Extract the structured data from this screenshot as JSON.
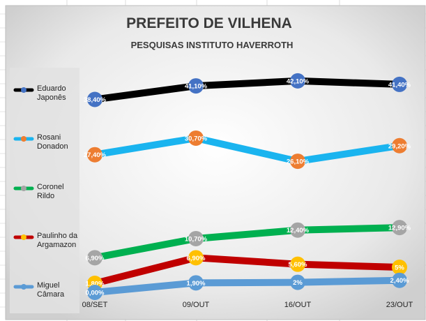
{
  "chart_data": {
    "type": "line",
    "title": "PREFEITO DE VILHENA",
    "subtitle": "PESQUISAS INSTITUTO HAVERROTH",
    "categories": [
      "08/SET",
      "09/OUT",
      "16/OUT",
      "23/OUT"
    ],
    "ylim": [
      0,
      45
    ],
    "grid": false,
    "legend_position": "left",
    "series": [
      {
        "name": "Eduardo Japonês",
        "legend_lines": [
          "Eduardo",
          "Japonês"
        ],
        "values": [
          38.4,
          41.1,
          42.1,
          41.4
        ],
        "labels": [
          "38,40%",
          "41,10%",
          "42,10%",
          "41,40%"
        ],
        "line_color": "#000000",
        "marker_color": "#4472c4"
      },
      {
        "name": "Rosani Donadon",
        "legend_lines": [
          "Rosani",
          "Donadon"
        ],
        "values": [
          27.4,
          30.7,
          26.1,
          29.2
        ],
        "labels": [
          "27,40%",
          "30,70%",
          "26,10%",
          "29,20%"
        ],
        "line_color": "#1ab4ef",
        "marker_color": "#ed7d31"
      },
      {
        "name": "Coronel Rildo",
        "legend_lines": [
          "Coronel",
          "Rildo"
        ],
        "values": [
          6.9,
          10.7,
          12.4,
          12.9
        ],
        "labels": [
          "6,90%",
          "10,70%",
          "12,40%",
          "12,90%"
        ],
        "line_color": "#00b050",
        "marker_color": "#a5a5a5"
      },
      {
        "name": "Paulinho da Argamazon",
        "legend_lines": [
          "Paulinho da",
          "Argamazon"
        ],
        "values": [
          1.8,
          6.9,
          5.6,
          5.0
        ],
        "labels": [
          "1,80%",
          "6,90%",
          "5,60%",
          "5%"
        ],
        "line_color": "#c00000",
        "marker_color": "#ffc000"
      },
      {
        "name": "Miguel Câmara",
        "legend_lines": [
          "Miguel",
          "Câmara"
        ],
        "values": [
          0.0,
          1.9,
          2.0,
          2.4
        ],
        "labels": [
          "0,00%",
          "1,90%",
          "2%",
          "2,40%"
        ],
        "line_color": "#5b9bd5",
        "marker_color": "#5b9bd5"
      }
    ]
  }
}
